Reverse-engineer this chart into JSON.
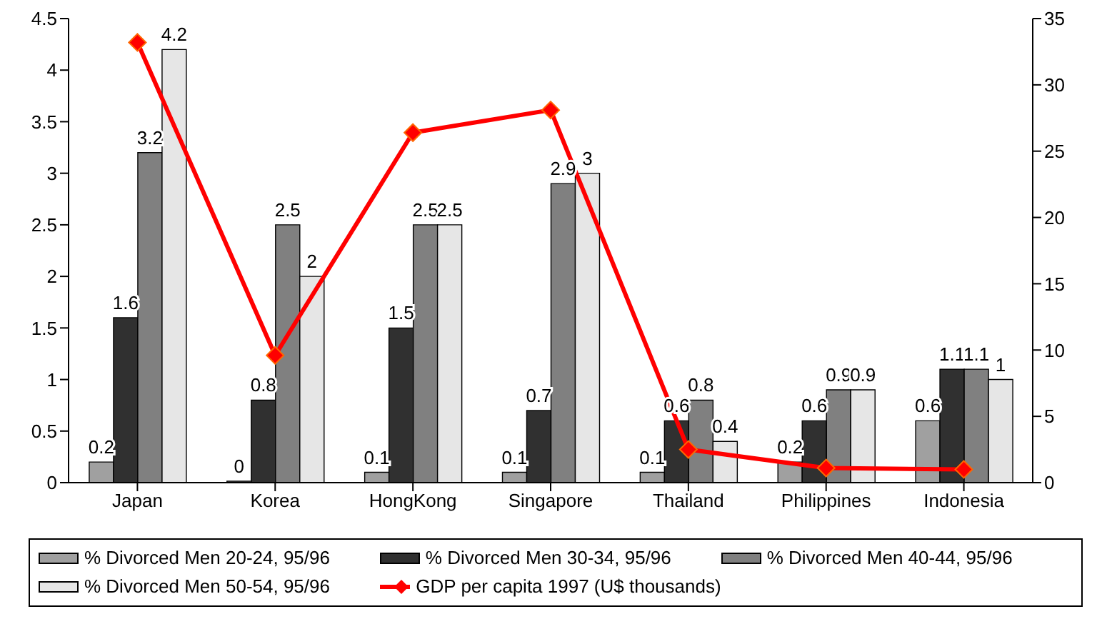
{
  "chart_data": {
    "type": "bar",
    "categories": [
      "Japan",
      "Korea",
      "HongKong",
      "Singapore",
      "Thailand",
      "Philippines",
      "Indonesia"
    ],
    "series": [
      {
        "name": "% Divorced Men 20-24,  95/96",
        "color": "#a0a0a0",
        "values": [
          0.2,
          0,
          0.1,
          0.1,
          0.1,
          0.2,
          0.6
        ],
        "value_labels": [
          "0.2",
          "0",
          "0.1",
          "0.1",
          "0.1",
          "0.2",
          "0.6"
        ]
      },
      {
        "name": "% Divorced Men 30-34,  95/96",
        "color": "#303030",
        "values": [
          1.6,
          0.8,
          1.5,
          0.7,
          0.6,
          0.6,
          1.1
        ],
        "value_labels": [
          "1.6",
          "0.8",
          "1.5",
          "0.7",
          "0.6",
          "0.6",
          "1.1"
        ]
      },
      {
        "name": "% Divorced Men 40-44,  95/96",
        "color": "#808080",
        "values": [
          3.2,
          2.5,
          2.5,
          2.9,
          0.8,
          0.9,
          1.1
        ],
        "value_labels": [
          "3.2",
          "2.5",
          "2.5",
          "2.9",
          "0.8",
          "0.9",
          "1.1"
        ]
      },
      {
        "name": "% Divorced Men 50-54, 95/96",
        "color": "#e6e6e6",
        "values": [
          4.2,
          2,
          2.5,
          3,
          0.4,
          0.9,
          1
        ],
        "value_labels": [
          "4.2",
          "2",
          "2.5",
          "3",
          "0.4",
          "0.9",
          "1"
        ]
      },
      {
        "name": "GDP per capita 1997 (U$ thousands)",
        "type": "line",
        "axis": "y2",
        "color": "#ff0000",
        "marker": "diamond",
        "values": [
          33.2,
          9.6,
          26.4,
          28.1,
          2.5,
          1.1,
          1.0
        ]
      }
    ],
    "ylim": [
      0,
      4.5
    ],
    "yticks": [
      0,
      0.5,
      1,
      1.5,
      2,
      2.5,
      3,
      3.5,
      4,
      4.5
    ],
    "y2lim": [
      0,
      35
    ],
    "y2ticks": [
      0,
      5,
      10,
      15,
      20,
      25,
      30,
      35
    ],
    "grid": false,
    "legend": "bottom"
  }
}
